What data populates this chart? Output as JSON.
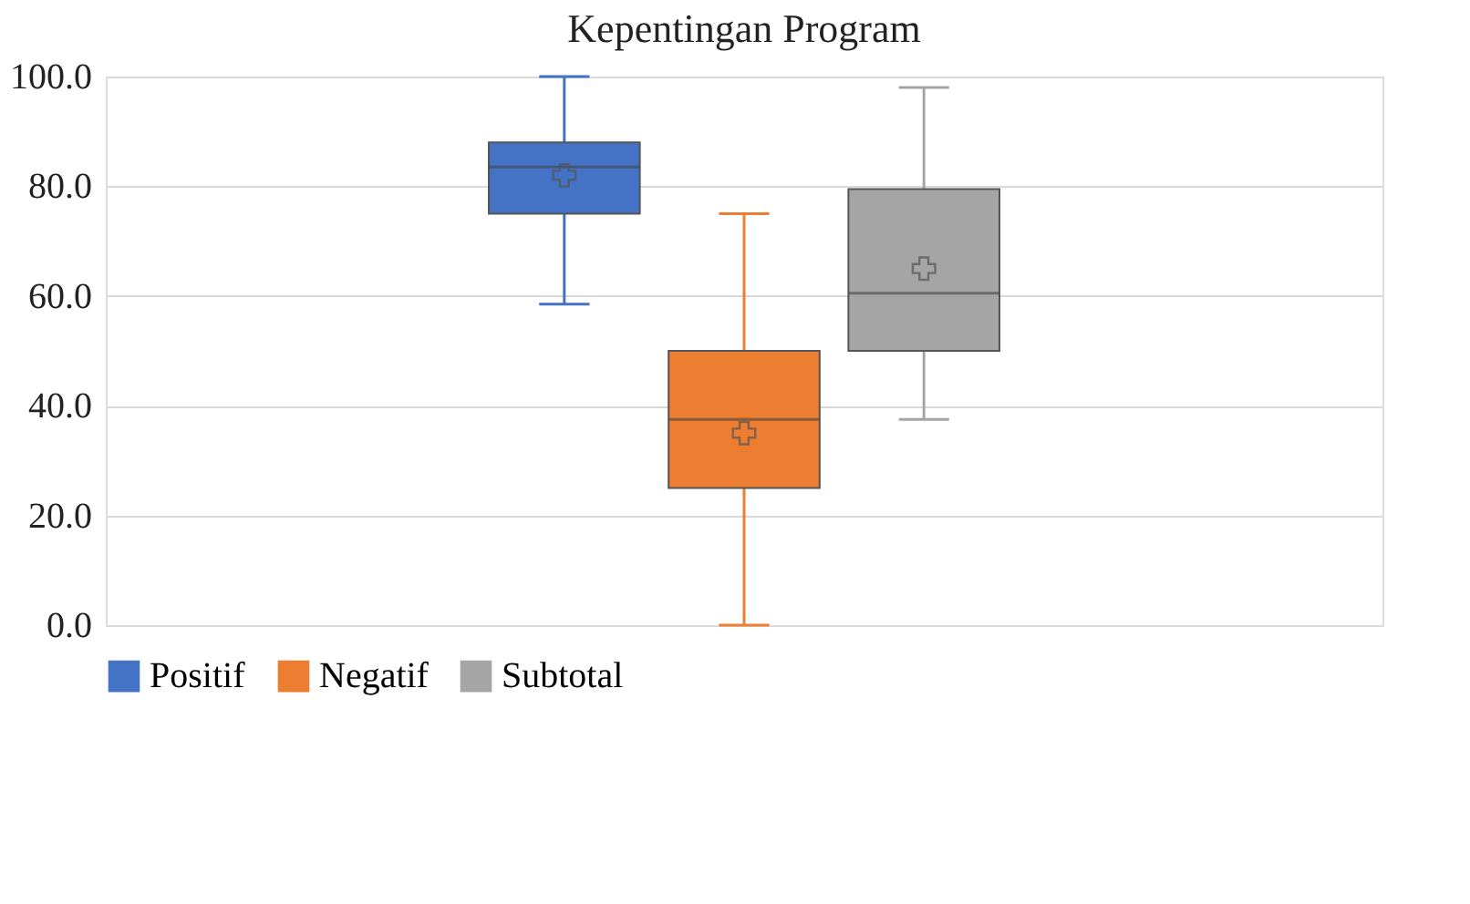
{
  "chart_data": {
    "type": "box",
    "title": "Kepentingan Program",
    "categories": [
      null
    ],
    "series": [
      {
        "name": "Positif",
        "color": "#4472c4",
        "boxes": [
          {
            "low": 58.5,
            "q1": 75,
            "median": 83.5,
            "q3": 88,
            "high": 100,
            "mean": 82
          }
        ]
      },
      {
        "name": "Negatif",
        "color": "#ed7d31",
        "boxes": [
          {
            "low": 0,
            "q1": 25,
            "median": 37.5,
            "q3": 50,
            "high": 75,
            "mean": 35
          }
        ]
      },
      {
        "name": "Subtotal",
        "color": "#a5a5a5",
        "boxes": [
          {
            "low": 37.5,
            "q1": 50,
            "median": 60.5,
            "q3": 79.5,
            "high": 98,
            "mean": 65
          }
        ]
      }
    ],
    "ylim": [
      0,
      100
    ],
    "yticks": [
      {
        "value": 0,
        "label": "0.0"
      },
      {
        "value": 20,
        "label": "20.0"
      },
      {
        "value": 40,
        "label": "40.0"
      },
      {
        "value": 60,
        "label": "60.0"
      },
      {
        "value": 80,
        "label": "80.0"
      },
      {
        "value": 100,
        "label": "100.0"
      }
    ],
    "grid": "y",
    "legend": "bottom",
    "tick_labels": "y",
    "marker": "cross"
  }
}
